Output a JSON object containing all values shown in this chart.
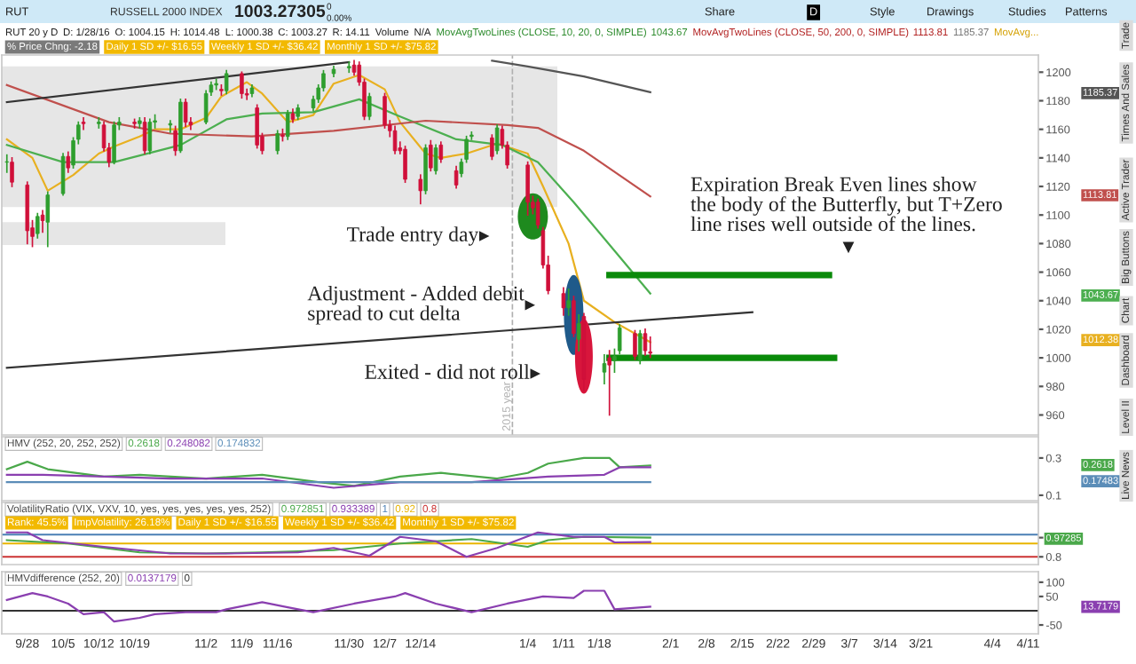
{
  "chart_data": [
    {
      "type": "other",
      "title": "RUSSELL 2000 INDEX",
      "annotations": [
        "RUT",
        "1003.27305",
        "0",
        "0.00%",
        "Share",
        "D",
        "Style",
        "Drawings",
        "Studies",
        "Patterns",
        "RUT 20 y D",
        "D: 1/28/16",
        "O: 1004.15",
        "H: 1014.48",
        "L: 1000.38",
        "C: 1003.27",
        "R: 14.11",
        "Volume",
        "N/A",
        "MovAvgTwoLines (CLOSE, 10, 20, 0, SIMPLE)",
        "1043.67",
        "MovAvgTwoLines (CLOSE, 50, 200, 0, SIMPLE)",
        "1113.81",
        "1185.37",
        "MovAvg...",
        "% Price Chng: -2.18",
        "Daily 1 SD +/- $16.55",
        "Weekly 1 SD +/- $36.42",
        "Monthly 1 SD +/- $75.82",
        "Trade",
        "Times And Sales",
        "Active Trader",
        "Big Buttons",
        "Chart",
        "Dashboard",
        "Level II",
        "Live News"
      ]
    },
    {
      "type": "candlestick",
      "x": [
        "2015-09-24",
        "2015-09-25",
        "2015-09-28",
        "2015-09-29",
        "2015-09-30",
        "2015-10-01",
        "2015-10-02",
        "2015-10-05",
        "2015-10-06",
        "2015-10-07",
        "2015-10-08",
        "2015-10-09",
        "2015-10-12",
        "2015-10-13",
        "2015-10-14",
        "2015-10-15",
        "2015-10-16",
        "2015-10-19",
        "2015-10-20",
        "2015-10-21",
        "2015-10-22",
        "2015-10-23",
        "2015-10-26",
        "2015-10-27",
        "2015-10-28",
        "2015-10-29",
        "2015-10-30",
        "2015-11-02",
        "2015-11-03",
        "2015-11-04",
        "2015-11-05",
        "2015-11-06",
        "2015-11-09",
        "2015-11-10",
        "2015-11-11",
        "2015-11-12",
        "2015-11-13",
        "2015-11-16",
        "2015-11-17",
        "2015-11-18",
        "2015-11-19",
        "2015-11-20",
        "2015-11-23",
        "2015-11-24",
        "2015-11-25",
        "2015-11-27",
        "2015-11-30",
        "2015-12-01",
        "2015-12-02",
        "2015-12-03",
        "2015-12-04",
        "2015-12-07",
        "2015-12-08",
        "2015-12-09",
        "2015-12-10",
        "2015-12-11",
        "2015-12-14",
        "2015-12-15",
        "2015-12-16",
        "2015-12-17",
        "2015-12-18",
        "2015-12-21",
        "2015-12-22",
        "2015-12-23",
        "2015-12-24",
        "2015-12-28",
        "2015-12-29",
        "2015-12-30",
        "2015-12-31",
        "2016-01-04",
        "2016-01-05",
        "2016-01-06",
        "2016-01-07",
        "2016-01-08",
        "2016-01-11",
        "2016-01-12",
        "2016-01-13",
        "2016-01-14",
        "2016-01-15",
        "2016-01-19",
        "2016-01-20",
        "2016-01-21",
        "2016-01-22",
        "2016-01-25",
        "2016-01-26",
        "2016-01-27",
        "2016-01-28"
      ],
      "ohlc": [
        [
          1137,
          1142,
          1130,
          1137
        ],
        [
          1137,
          1140,
          1120,
          1123
        ],
        [
          1121,
          1123,
          1080,
          1089
        ],
        [
          1091,
          1096,
          1078,
          1085
        ],
        [
          1087,
          1101,
          1084,
          1099
        ],
        [
          1100,
          1103,
          1088,
          1096
        ],
        [
          1095,
          1116,
          1078,
          1114
        ],
        [
          1115,
          1143,
          1114,
          1141
        ],
        [
          1141,
          1144,
          1130,
          1133
        ],
        [
          1135,
          1154,
          1133,
          1152
        ],
        [
          1153,
          1165,
          1150,
          1163
        ],
        [
          1165,
          1168,
          1160,
          1164
        ],
        [
          1164,
          1168,
          1161,
          1165
        ],
        [
          1163,
          1165,
          1145,
          1147
        ],
        [
          1147,
          1150,
          1134,
          1137
        ],
        [
          1137,
          1165,
          1136,
          1163
        ],
        [
          1163,
          1168,
          1160,
          1165
        ],
        [
          1165,
          1167,
          1161,
          1164
        ],
        [
          1164,
          1168,
          1161,
          1166
        ],
        [
          1165,
          1168,
          1143,
          1145
        ],
        [
          1145,
          1167,
          1143,
          1165
        ],
        [
          1165,
          1170,
          1161,
          1166
        ],
        [
          1163,
          1166,
          1158,
          1164
        ],
        [
          1159,
          1162,
          1142,
          1145
        ],
        [
          1145,
          1181,
          1144,
          1179
        ],
        [
          1179,
          1181,
          1162,
          1165
        ],
        [
          1165,
          1168,
          1160,
          1163
        ],
        [
          1165,
          1187,
          1164,
          1185
        ],
        [
          1186,
          1193,
          1184,
          1191
        ],
        [
          1191,
          1195,
          1188,
          1192
        ],
        [
          1188,
          1191,
          1184,
          1187
        ],
        [
          1187,
          1201,
          1185,
          1199
        ],
        [
          1199,
          1200,
          1182,
          1185
        ],
        [
          1185,
          1188,
          1181,
          1184
        ],
        [
          1185,
          1191,
          1183,
          1189
        ],
        [
          1175,
          1177,
          1147,
          1149
        ],
        [
          1155,
          1157,
          1143,
          1145
        ],
        [
          1145,
          1159,
          1143,
          1157
        ],
        [
          1156,
          1160,
          1152,
          1155
        ],
        [
          1155,
          1173,
          1153,
          1171
        ],
        [
          1171,
          1174,
          1165,
          1167
        ],
        [
          1169,
          1177,
          1167,
          1175
        ],
        [
          1175,
          1183,
          1173,
          1181
        ],
        [
          1181,
          1191,
          1179,
          1189
        ],
        [
          1189,
          1201,
          1187,
          1199
        ],
        [
          1199,
          1204,
          1197,
          1202
        ],
        [
          1203,
          1207,
          1200,
          1204
        ],
        [
          1205,
          1208,
          1198,
          1200
        ],
        [
          1205,
          1207,
          1191,
          1193
        ],
        [
          1193,
          1195,
          1167,
          1169
        ],
        [
          1169,
          1185,
          1167,
          1183
        ],
        [
          1183,
          1185,
          1161,
          1163
        ],
        [
          1163,
          1166,
          1155,
          1159
        ],
        [
          1159,
          1162,
          1143,
          1145
        ],
        [
          1147,
          1151,
          1143,
          1145
        ],
        [
          1146,
          1148,
          1123,
          1125
        ],
        [
          1125,
          1128,
          1108,
          1117
        ],
        [
          1117,
          1149,
          1115,
          1147
        ],
        [
          1149,
          1152,
          1131,
          1133
        ],
        [
          1131,
          1149,
          1129,
          1147
        ],
        [
          1149,
          1151,
          1137,
          1139
        ],
        [
          1131,
          1134,
          1119,
          1121
        ],
        [
          1129,
          1139,
          1127,
          1137
        ],
        [
          1139,
          1155,
          1137,
          1153
        ],
        [
          1155,
          1158,
          1153,
          1156
        ],
        [
          1154,
          1156,
          1139,
          1141
        ],
        [
          1145,
          1163,
          1143,
          1161
        ],
        [
          1160,
          1162,
          1147,
          1149
        ],
        [
          1149,
          1151,
          1133,
          1135
        ],
        [
          1135,
          1137,
          1100,
          1109
        ],
        [
          1109,
          1113,
          1101,
          1105
        ],
        [
          1109,
          1111,
          1091,
          1093
        ],
        [
          1089,
          1091,
          1063,
          1065
        ],
        [
          1065,
          1071,
          1045,
          1047
        ],
        [
          1045,
          1049,
          1030,
          1035
        ],
        [
          1035,
          1048,
          1030,
          1040
        ],
        [
          1040,
          1043,
          1015,
          1017
        ],
        [
          1013,
          1030,
          1005,
          1024
        ],
        [
          1029,
          1031,
          977,
          985
        ],
        [
          990,
          1002,
          982,
          996
        ],
        [
          1000,
          1005,
          960,
          995
        ],
        [
          998,
          1006,
          990,
          1001
        ],
        [
          1005,
          1023,
          1003,
          1021
        ],
        [
          1017,
          1019,
          999,
          1001
        ],
        [
          998,
          1019,
          996,
          1017
        ],
        [
          1017,
          1020,
          1002,
          1005
        ],
        [
          1004.15,
          1014.48,
          1000.38,
          1003.27
        ]
      ],
      "series": [
        {
          "type": "line",
          "color": "#e8b020",
          "x": [
            "2015-09-24",
            "2015-09-29",
            "2015-10-02",
            "2015-10-07",
            "2015-10-12",
            "2015-10-15",
            "2015-10-20",
            "2015-10-23",
            "2015-10-28",
            "2015-11-02",
            "2015-11-05",
            "2015-11-10",
            "2015-11-13",
            "2015-11-18",
            "2015-11-23",
            "2015-11-27",
            "2015-12-02",
            "2015-12-07",
            "2015-12-10",
            "2015-12-15",
            "2015-12-18",
            "2015-12-23",
            "2015-12-29",
            "2016-01-04",
            "2016-01-07",
            "2016-01-12",
            "2016-01-15",
            "2016-01-21",
            "2016-01-26",
            "2016-01-28"
          ],
          "values": [
            1153,
            1140,
            1117,
            1128,
            1143,
            1148,
            1155,
            1160,
            1160,
            1168,
            1183,
            1193,
            1185,
            1165,
            1170,
            1192,
            1198,
            1188,
            1165,
            1143,
            1140,
            1143,
            1150,
            1143,
            1120,
            1080,
            1040,
            1025,
            1015,
            1011
          ]
        },
        {
          "type": "line",
          "color": "#4caf50",
          "x": [
            "2015-09-24",
            "2015-10-05",
            "2015-10-15",
            "2015-10-28",
            "2015-11-06",
            "2015-11-13",
            "2015-11-23",
            "2015-12-02",
            "2015-12-10",
            "2015-12-21",
            "2015-12-30",
            "2016-01-06",
            "2016-01-13",
            "2016-01-21",
            "2016-01-28"
          ],
          "values": [
            1149,
            1137,
            1137,
            1149,
            1167,
            1171,
            1172,
            1181,
            1169,
            1153,
            1149,
            1137,
            1109,
            1075,
            1045
          ]
        },
        {
          "type": "line",
          "color": "#c0504d",
          "x": [
            "2015-09-24",
            "2015-10-14",
            "2015-10-26",
            "2015-11-11",
            "2015-11-27",
            "2015-12-15",
            "2015-12-31",
            "2016-01-06",
            "2016-01-15",
            "2016-01-28"
          ],
          "values": [
            1191,
            1165,
            1157,
            1155,
            1159,
            1166,
            1163,
            1161,
            1145,
            1113
          ]
        },
        {
          "type": "line",
          "color": "#555555",
          "x": [
            "2015-12-28",
            "2016-01-04",
            "2016-01-15",
            "2016-01-28"
          ],
          "values": [
            1208,
            1204,
            1197,
            1186
          ]
        },
        {
          "type": "line",
          "color": "#333333",
          "x": [
            "2015-09-24",
            "2015-11-30"
          ],
          "values": [
            1179,
            1207
          ]
        },
        {
          "type": "line",
          "color": "#333333",
          "x": [
            "2015-09-24",
            "2016-02-17"
          ],
          "values": [
            993,
            1032
          ]
        },
        {
          "type": "line",
          "color": "#0a8a0a",
          "x": [
            "2016-01-20",
            "2016-03-03"
          ],
          "values": [
            1058,
            1058
          ]
        },
        {
          "type": "line",
          "color": "#0a8a0a",
          "x": [
            "2016-01-20",
            "2016-03-04"
          ],
          "values": [
            1000,
            1000
          ]
        }
      ],
      "xlim": [
        "2015-09-23",
        "2016-04-13"
      ],
      "ylim": [
        946,
        1212
      ],
      "yticks": [
        960,
        980,
        1000,
        1020,
        1040,
        1060,
        1080,
        1100,
        1120,
        1140,
        1160,
        1180,
        1200
      ],
      "tick_labels": "y",
      "ref_lines": [
        {
          "axis": "x",
          "value": "2016-01-01",
          "label": "2015 year",
          "color": "#b0b0b0",
          "line_style": "dashed"
        }
      ],
      "annotations": [
        {
          "text": "Trade entry day",
          "x": "2016-01-05",
          "y": 1099
        },
        {
          "text": "Adjustment - Added debit\nspread to cut delta",
          "x": "2016-01-13",
          "y": 1030
        },
        {
          "text": "Exited - did not roll",
          "x": "2016-01-15",
          "y": 1001
        },
        "Expiration Break Even lines show\nthe body of the Butterfly, but T+Zero\nline rises well outside of the lines.",
        "1185.37",
        "1113.81",
        "1043.67",
        "1012.38"
      ]
    },
    {
      "type": "line",
      "title": "HMV (252, 20, 252, 252)",
      "series": [
        {
          "color": "#4aa84a",
          "x": [
            "2015-09-24",
            "2015-09-28",
            "2015-10-02",
            "2015-10-13",
            "2015-10-20",
            "2015-11-02",
            "2015-11-13",
            "2015-11-24",
            "2015-12-01",
            "2015-12-10",
            "2015-12-18",
            "2015-12-29",
            "2016-01-04",
            "2016-01-08",
            "2016-01-15",
            "2016-01-20",
            "2016-01-22",
            "2016-01-28"
          ],
          "values": [
            0.24,
            0.28,
            0.24,
            0.2,
            0.21,
            0.19,
            0.21,
            0.17,
            0.15,
            0.2,
            0.22,
            0.19,
            0.22,
            0.27,
            0.3,
            0.3,
            0.25,
            0.26
          ]
        },
        {
          "color": "#8a3fb0",
          "x": [
            "2015-09-24",
            "2015-10-01",
            "2015-10-13",
            "2015-10-26",
            "2015-11-13",
            "2015-11-27",
            "2015-12-10",
            "2015-12-24",
            "2016-01-08",
            "2016-01-19",
            "2016-01-22",
            "2016-01-28"
          ],
          "values": [
            0.21,
            0.21,
            0.2,
            0.19,
            0.19,
            0.14,
            0.17,
            0.17,
            0.2,
            0.21,
            0.25,
            0.25
          ]
        },
        {
          "color": "#5b8db8",
          "x": [
            "2015-09-24",
            "2016-01-28"
          ],
          "values": [
            0.17,
            0.17
          ]
        }
      ],
      "xlim": [
        "2015-09-23",
        "2016-04-13"
      ],
      "ylim": [
        0.071,
        0.414
      ],
      "yticks": [
        0.1,
        0.3
      ],
      "tick_labels": "y",
      "annotations": [
        "0.2618",
        "0.248082",
        "0.174832",
        "0.2618",
        "0.17483"
      ]
    },
    {
      "type": "line",
      "title": "VolatilityRatio (VIX, VXV, 10, yes, yes, yes, yes, yes, 252)",
      "series": [
        {
          "color": "#4aa84a",
          "x": [
            "2015-09-24",
            "2015-10-06",
            "2015-10-20",
            "2015-11-02",
            "2015-11-13",
            "2015-11-27",
            "2015-12-10",
            "2015-12-24",
            "2016-01-04",
            "2016-01-08",
            "2016-01-15",
            "2016-01-28"
          ],
          "values": [
            0.95,
            0.92,
            0.84,
            0.83,
            0.84,
            0.86,
            0.92,
            0.96,
            0.89,
            0.95,
            0.98,
            0.972851
          ]
        },
        {
          "color": "#8a3fb0",
          "x": [
            "2015-09-24",
            "2015-09-28",
            "2015-10-01",
            "2015-10-13",
            "2015-10-26",
            "2015-11-06",
            "2015-11-20",
            "2015-11-27",
            "2015-12-04",
            "2015-12-10",
            "2015-12-17",
            "2015-12-23",
            "2015-12-29",
            "2016-01-06",
            "2016-01-13",
            "2016-01-19",
            "2016-01-21",
            "2016-01-28"
          ],
          "values": [
            1.02,
            1.02,
            0.95,
            0.89,
            0.83,
            0.83,
            0.84,
            0.88,
            0.81,
            0.98,
            0.94,
            0.8,
            0.88,
            1.02,
            0.98,
            0.98,
            0.93,
            0.933389
          ]
        }
      ],
      "ref_lines": [
        {
          "axis": "y",
          "value": 1,
          "label": "1",
          "color": "#4a7fb5"
        },
        {
          "axis": "y",
          "value": 0.92,
          "label": "0.92",
          "color": "#e8b400"
        },
        {
          "axis": "y",
          "value": 0.8,
          "label": "0.8",
          "color": "#cc3333"
        }
      ],
      "xlim": [
        "2015-09-23",
        "2016-04-13"
      ],
      "ylim": [
        0.73,
        1.29
      ],
      "yticks": [
        {
          "value": 0.972851,
          "label": "0.97285"
        },
        0.8
      ],
      "tick_labels": "y",
      "annotations": [
        "0.972851",
        "0.933389",
        "Rank: 45.5%",
        "ImpVolatility: 26.18%",
        "Daily 1 SD +/- $16.55",
        "Weekly 1 SD +/- $36.42",
        "Monthly 1 SD +/- $75.82"
      ]
    },
    {
      "type": "line",
      "title": "HMVdifference (252, 20)",
      "series": [
        {
          "color": "#8a3fb0",
          "x": [
            "2015-09-24",
            "2015-09-29",
            "2015-10-02",
            "2015-10-06",
            "2015-10-09",
            "2015-10-13",
            "2015-10-15",
            "2015-10-20",
            "2015-10-23",
            "2015-10-29",
            "2015-11-04",
            "2015-11-06",
            "2015-11-13",
            "2015-11-18",
            "2015-11-23",
            "2015-12-01",
            "2015-12-09",
            "2015-12-11",
            "2015-12-17",
            "2015-12-24",
            "2015-12-31",
            "2016-01-07",
            "2016-01-13",
            "2016-01-15",
            "2016-01-19",
            "2016-01-21",
            "2016-01-28"
          ],
          "values": [
            38,
            62,
            50,
            25,
            -12,
            -5,
            -38,
            -25,
            -12,
            -5,
            -5,
            5,
            30,
            12,
            -5,
            25,
            50,
            62,
            25,
            -5,
            25,
            50,
            45,
            70,
            70,
            5,
            14
          ]
        }
      ],
      "ref_lines": [
        {
          "axis": "y",
          "value": 0,
          "label": "0",
          "color": "#333333"
        }
      ],
      "xlim": [
        "2015-09-23",
        "2016-04-13"
      ],
      "ylim": [
        -81,
        137
      ],
      "yticks": [
        100,
        50,
        -50
      ],
      "xticks": [
        {
          "value": "2015-09-28",
          "label": "9/28"
        },
        {
          "value": "2015-10-05",
          "label": "10/5"
        },
        {
          "value": "2015-10-12",
          "label": "10/12"
        },
        {
          "value": "2015-10-19",
          "label": "10/19"
        },
        {
          "value": "2015-11-02",
          "label": "11/2"
        },
        {
          "value": "2015-11-09",
          "label": "11/9"
        },
        {
          "value": "2015-11-16",
          "label": "11/16"
        },
        {
          "value": "2015-11-30",
          "label": "11/30"
        },
        {
          "value": "2015-12-07",
          "label": "12/7"
        },
        {
          "value": "2015-12-14",
          "label": "12/14"
        },
        {
          "value": "2016-01-04",
          "label": "1/4"
        },
        {
          "value": "2016-01-11",
          "label": "1/11"
        },
        {
          "value": "2016-01-18",
          "label": "1/18"
        },
        {
          "value": "2016-02-01",
          "label": "2/1"
        },
        {
          "value": "2016-02-08",
          "label": "2/8"
        },
        {
          "value": "2016-02-15",
          "label": "2/15"
        },
        {
          "value": "2016-02-22",
          "label": "2/22"
        },
        {
          "value": "2016-02-29",
          "label": "2/29"
        },
        {
          "value": "2016-03-07",
          "label": "3/7"
        },
        {
          "value": "2016-03-14",
          "label": "3/14"
        },
        {
          "value": "2016-03-21",
          "label": "3/21"
        },
        {
          "value": "2016-04-04",
          "label": "4/4"
        },
        {
          "value": "2016-04-11",
          "label": "4/11"
        }
      ],
      "annotations": [
        "0.0137179",
        "13.7179"
      ]
    }
  ]
}
